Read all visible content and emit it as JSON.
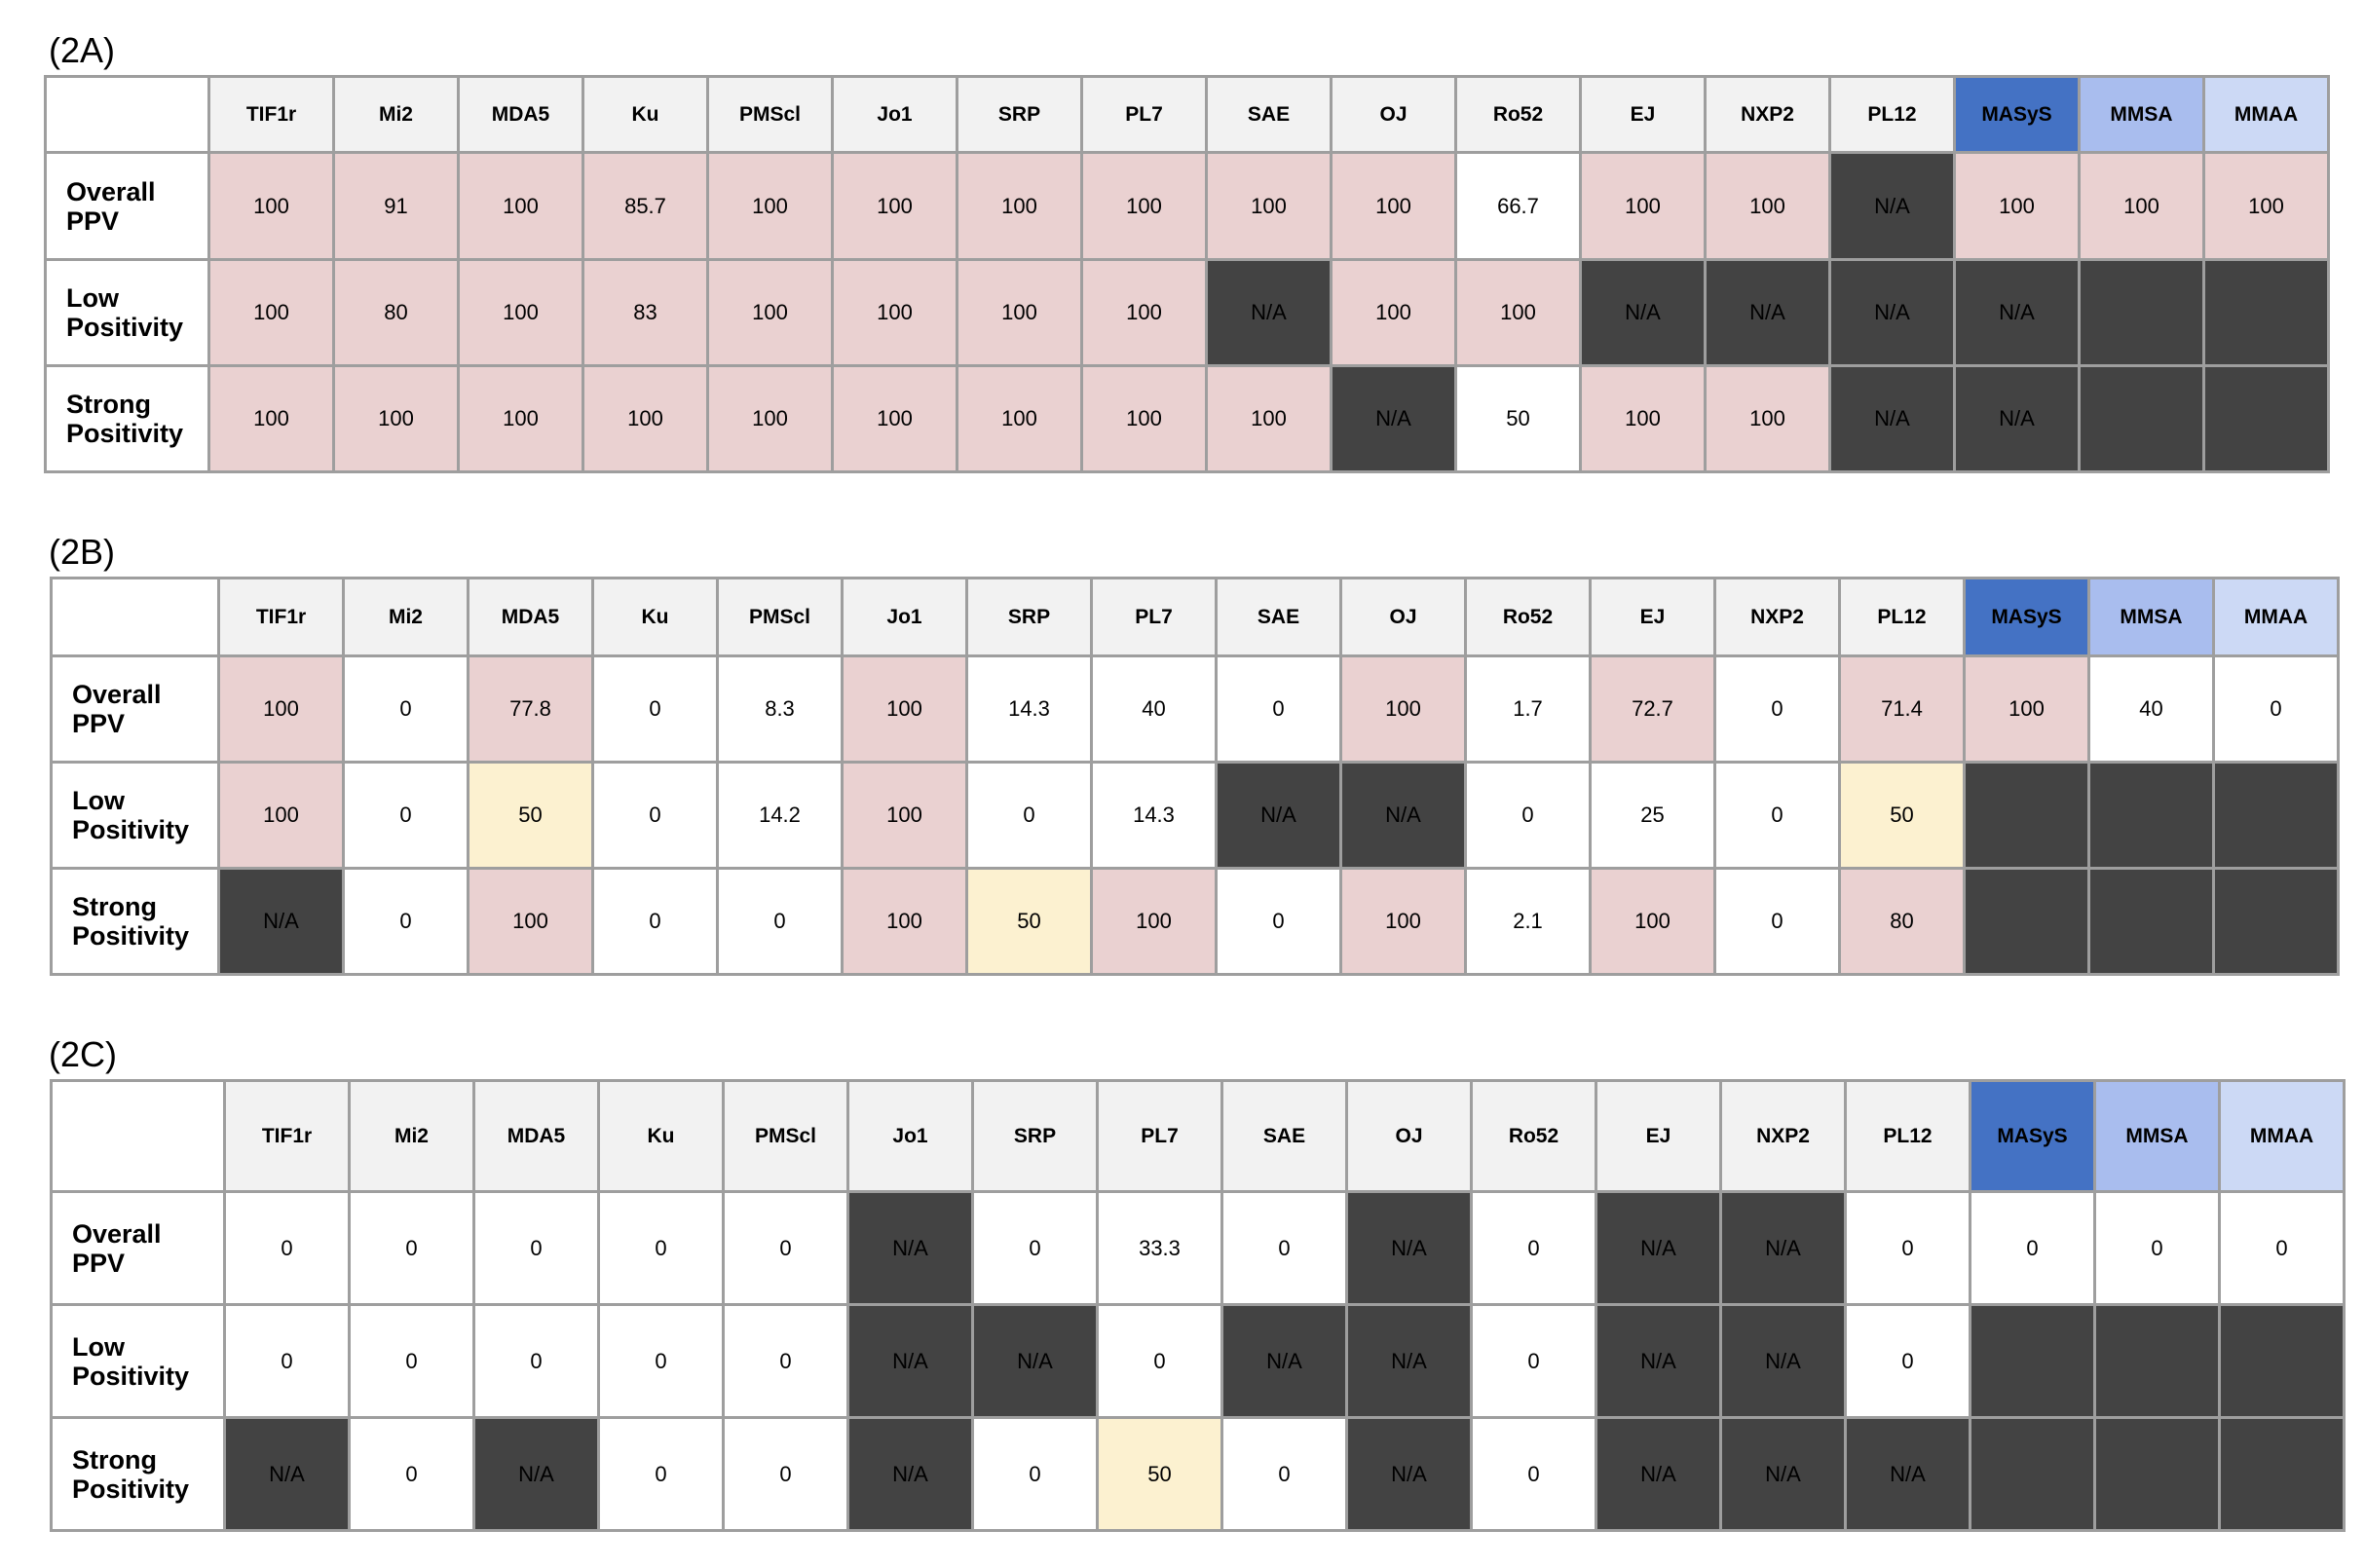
{
  "columns": [
    "TIF1r",
    "Mi2",
    "MDA5",
    "Ku",
    "PMScl",
    "Jo1",
    "SRP",
    "PL7",
    "SAE",
    "OJ",
    "Ro52",
    "EJ",
    "NXP2",
    "PL12",
    "MASyS",
    "MMSA",
    "MMAA"
  ],
  "row_labels": [
    [
      "Overall",
      "PPV"
    ],
    [
      "Low",
      "Positivity"
    ],
    [
      "Strong",
      "Positivity"
    ]
  ],
  "colors": {
    "pink": "#ead1d1",
    "white": "#ffffff",
    "yellow": "#fcf1d0",
    "dark": "#434343",
    "header_gray": "#f2f2f2",
    "masys_header": "#4472c4",
    "mmsa_header": "#a9bdee",
    "mmaa_header": "#ccd9f5"
  },
  "panels": [
    {
      "label": "(2A)",
      "rows": [
        {
          "values": [
            "100",
            "91",
            "100",
            "85.7",
            "100",
            "100",
            "100",
            "100",
            "100",
            "100",
            "66.7",
            "100",
            "100",
            "N/A",
            "100",
            "100",
            "100"
          ],
          "fills": [
            "pink",
            "pink",
            "pink",
            "pink",
            "pink",
            "pink",
            "pink",
            "pink",
            "pink",
            "pink",
            "white",
            "pink",
            "pink",
            "dark",
            "pink",
            "pink",
            "pink"
          ]
        },
        {
          "values": [
            "100",
            "80",
            "100",
            "83",
            "100",
            "100",
            "100",
            "100",
            "N/A",
            "100",
            "100",
            "N/A",
            "N/A",
            "N/A",
            "N/A",
            "",
            ""
          ],
          "fills": [
            "pink",
            "pink",
            "pink",
            "pink",
            "pink",
            "pink",
            "pink",
            "pink",
            "dark",
            "pink",
            "pink",
            "dark",
            "dark",
            "dark",
            "dark",
            "dark",
            "dark"
          ]
        },
        {
          "values": [
            "100",
            "100",
            "100",
            "100",
            "100",
            "100",
            "100",
            "100",
            "100",
            "N/A",
            "50",
            "100",
            "100",
            "N/A",
            "N/A",
            "",
            ""
          ],
          "fills": [
            "pink",
            "pink",
            "pink",
            "pink",
            "pink",
            "pink",
            "pink",
            "pink",
            "pink",
            "dark",
            "white",
            "pink",
            "pink",
            "dark",
            "dark",
            "dark",
            "dark"
          ]
        }
      ]
    },
    {
      "label": "(2B)",
      "rows": [
        {
          "values": [
            "100",
            "0",
            "77.8",
            "0",
            "8.3",
            "100",
            "14.3",
            "40",
            "0",
            "100",
            "1.7",
            "72.7",
            "0",
            "71.4",
            "100",
            "40",
            "0"
          ],
          "fills": [
            "pink",
            "white",
            "pink",
            "white",
            "white",
            "pink",
            "white",
            "white",
            "white",
            "pink",
            "white",
            "pink",
            "white",
            "pink",
            "pink",
            "white",
            "white"
          ]
        },
        {
          "values": [
            "100",
            "0",
            "50",
            "0",
            "14.2",
            "100",
            "0",
            "14.3",
            "N/A",
            "N/A",
            "0",
            "25",
            "0",
            "50",
            "",
            "",
            ""
          ],
          "fills": [
            "pink",
            "white",
            "yellow",
            "white",
            "white",
            "pink",
            "white",
            "white",
            "dark",
            "dark",
            "white",
            "white",
            "white",
            "yellow",
            "dark",
            "dark",
            "dark"
          ]
        },
        {
          "values": [
            "N/A",
            "0",
            "100",
            "0",
            "0",
            "100",
            "50",
            "100",
            "0",
            "100",
            "2.1",
            "100",
            "0",
            "80",
            "",
            "",
            ""
          ],
          "fills": [
            "dark",
            "white",
            "pink",
            "white",
            "white",
            "pink",
            "yellow",
            "pink",
            "white",
            "pink",
            "white",
            "pink",
            "white",
            "pink",
            "dark",
            "dark",
            "dark"
          ]
        }
      ]
    },
    {
      "label": "(2C)",
      "rows": [
        {
          "values": [
            "0",
            "0",
            "0",
            "0",
            "0",
            "N/A",
            "0",
            "33.3",
            "0",
            "N/A",
            "0",
            "N/A",
            "N/A",
            "0",
            "0",
            "0",
            "0"
          ],
          "fills": [
            "white",
            "white",
            "white",
            "white",
            "white",
            "dark",
            "white",
            "white",
            "white",
            "dark",
            "white",
            "dark",
            "dark",
            "white",
            "white",
            "white",
            "white"
          ]
        },
        {
          "values": [
            "0",
            "0",
            "0",
            "0",
            "0",
            "N/A",
            "N/A",
            "0",
            "N/A",
            "N/A",
            "0",
            "N/A",
            "N/A",
            "0",
            "",
            "",
            ""
          ],
          "fills": [
            "white",
            "white",
            "white",
            "white",
            "white",
            "dark",
            "dark",
            "white",
            "dark",
            "dark",
            "white",
            "dark",
            "dark",
            "white",
            "dark",
            "dark",
            "dark"
          ]
        },
        {
          "values": [
            "N/A",
            "0",
            "N/A",
            "0",
            "0",
            "N/A",
            "0",
            "50",
            "0",
            "N/A",
            "0",
            "N/A",
            "N/A",
            "N/A",
            "",
            "",
            ""
          ],
          "fills": [
            "dark",
            "white",
            "dark",
            "white",
            "white",
            "dark",
            "white",
            "yellow",
            "white",
            "dark",
            "white",
            "dark",
            "dark",
            "dark",
            "dark",
            "dark",
            "dark"
          ]
        }
      ]
    }
  ]
}
